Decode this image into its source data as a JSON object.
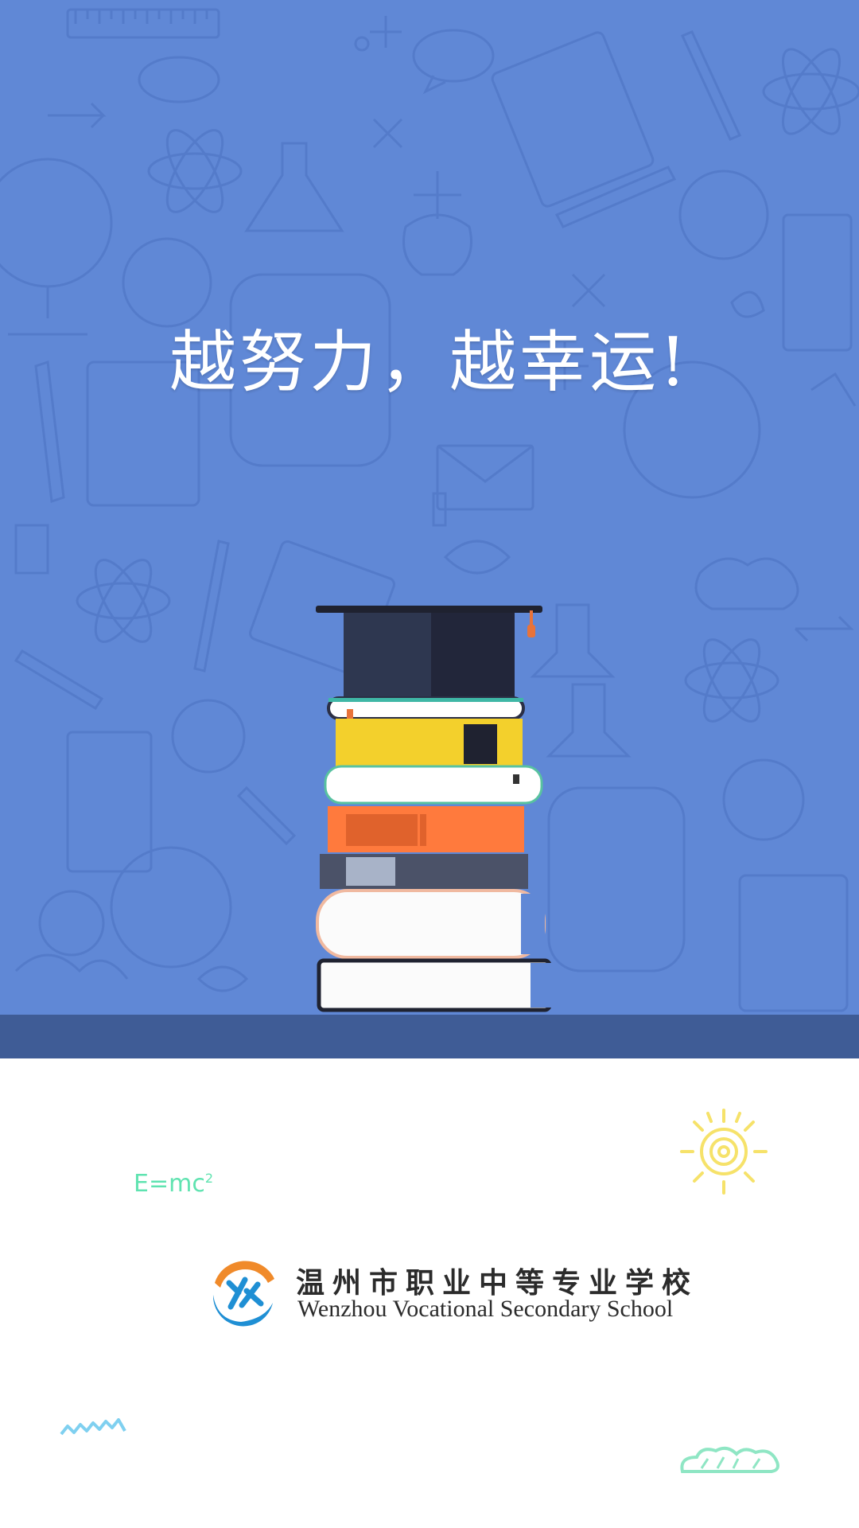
{
  "slogan": "越努力，越幸运!",
  "formula": {
    "main": "E=mc",
    "exponent": "2"
  },
  "school": {
    "name_cn": "温州市职业中等专业学校",
    "name_en": "Wenzhou Vocational Secondary School"
  },
  "colors": {
    "hero_bg": "#6088d6",
    "ground": "#3f5c96",
    "formula": "#5fe3b0",
    "sun": "#f6e26a",
    "logo_orange": "#f08a2a",
    "logo_blue": "#1f8fd4"
  },
  "icons": [
    "doodle-pattern",
    "graduation-cap-icon",
    "book-stack-illustration",
    "sun-doodle-icon",
    "wave-doodle-icon",
    "cloud-doodle-icon",
    "school-logo-icon"
  ]
}
